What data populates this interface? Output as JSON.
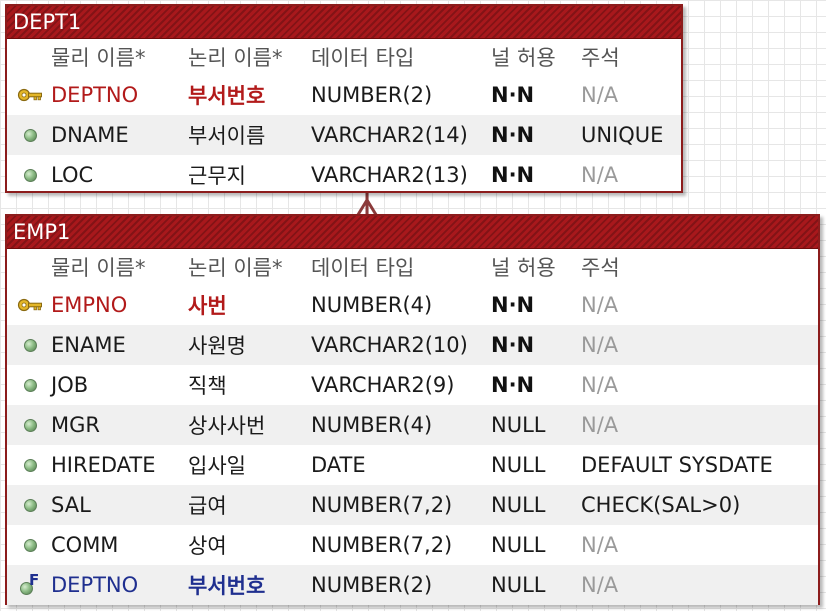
{
  "headers": {
    "physical_name": "물리 이름*",
    "logical_name": "논리 이름*",
    "data_type": "데이터 타입",
    "nullable": "널 허용",
    "comment": "주석"
  },
  "colors": {
    "title_bar": "#a8181c",
    "border": "#8c1c1c",
    "primary_key_text": "#b21a1a",
    "foreign_key_text": "#1f2f8f",
    "relationship_line": "#8b3a3a"
  },
  "entities": [
    {
      "name": "DEPT1",
      "columns": [
        {
          "key": "pk",
          "icon": "key-icon",
          "physical": "DEPTNO",
          "logical": "부서번호",
          "type": "NUMBER(2)",
          "nullable": "N·N",
          "comment": "N/A"
        },
        {
          "key": "none",
          "icon": "column-dot-icon",
          "physical": "DNAME",
          "logical": "부서이름",
          "type": "VARCHAR2(14)",
          "nullable": "N·N",
          "comment": "UNIQUE"
        },
        {
          "key": "none",
          "icon": "column-dot-icon",
          "physical": "LOC",
          "logical": "근무지",
          "type": "VARCHAR2(13)",
          "nullable": "N·N",
          "comment": "N/A"
        }
      ]
    },
    {
      "name": "EMP1",
      "columns": [
        {
          "key": "pk",
          "icon": "key-icon",
          "physical": "EMPNO",
          "logical": "사번",
          "type": "NUMBER(4)",
          "nullable": "N·N",
          "comment": "N/A"
        },
        {
          "key": "none",
          "icon": "column-dot-icon",
          "physical": "ENAME",
          "logical": "사원명",
          "type": "VARCHAR2(10)",
          "nullable": "N·N",
          "comment": "N/A"
        },
        {
          "key": "none",
          "icon": "column-dot-icon",
          "physical": "JOB",
          "logical": "직책",
          "type": "VARCHAR2(9)",
          "nullable": "N·N",
          "comment": "N/A"
        },
        {
          "key": "none",
          "icon": "column-dot-icon",
          "physical": "MGR",
          "logical": "상사사번",
          "type": "NUMBER(4)",
          "nullable": "NULL",
          "comment": "N/A"
        },
        {
          "key": "none",
          "icon": "column-dot-icon",
          "physical": "HIREDATE",
          "logical": "입사일",
          "type": "DATE",
          "nullable": "NULL",
          "comment": "DEFAULT SYSDATE"
        },
        {
          "key": "none",
          "icon": "column-dot-icon",
          "physical": "SAL",
          "logical": "급여",
          "type": "NUMBER(7,2)",
          "nullable": "NULL",
          "comment": "CHECK(SAL>0)"
        },
        {
          "key": "none",
          "icon": "column-dot-icon",
          "physical": "COMM",
          "logical": "상여",
          "type": "NUMBER(7,2)",
          "nullable": "NULL",
          "comment": "N/A"
        },
        {
          "key": "fk",
          "icon": "foreign-key-icon",
          "physical": "DEPTNO",
          "logical": "부서번호",
          "type": "NUMBER(2)",
          "nullable": "NULL",
          "comment": "N/A"
        }
      ]
    }
  ],
  "relationship": {
    "from": "DEPT1",
    "to": "EMP1",
    "cardinality": "one-to-many, optional"
  }
}
